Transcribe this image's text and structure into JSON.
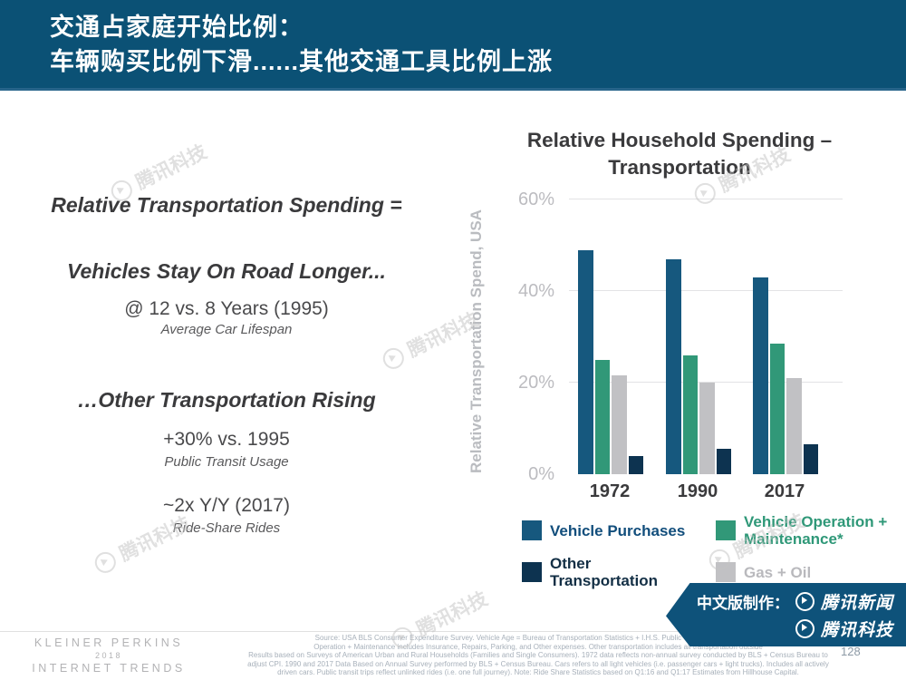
{
  "header": {
    "line1": "交通占家庭开始比例：",
    "line2": "车辆购买比例下滑......其他交通工具比例上涨"
  },
  "left_panel": {
    "heading1": "Relative Transportation Spending =",
    "heading2": "Vehicles Stay On Road Longer...",
    "stat1": {
      "value": "@ 12 vs. 8 Years (1995)",
      "caption": "Average Car Lifespan"
    },
    "heading3": "…Other Transportation Rising",
    "stat2": {
      "value": "+30% vs. 1995",
      "caption": "Public Transit Usage"
    },
    "stat3": {
      "value": "~2x Y/Y (2017)",
      "caption": "Ride-Share Rides"
    }
  },
  "chart": {
    "title_line1": "Relative Household Spending –",
    "title_line2": "Transportation",
    "ylabel": "Relative Transportation Spend, USA"
  },
  "chart_data": {
    "type": "bar",
    "title": "Relative Household Spending – Transportation",
    "xlabel": "",
    "ylabel": "Relative Transportation Spend, USA",
    "categories": [
      "1972",
      "1990",
      "2017"
    ],
    "series": [
      {
        "name": "Vehicle Purchases",
        "color": "#16587e",
        "values": [
          49,
          47,
          43
        ]
      },
      {
        "name": "Vehicle Operation + Maintenance*",
        "color": "#319878",
        "values": [
          25,
          26,
          28.5
        ]
      },
      {
        "name": "Gas + Oil",
        "color": "#c1c1c4",
        "values": [
          21.5,
          20,
          21
        ]
      },
      {
        "name": "Other Transportation",
        "color": "#0d3350",
        "values": [
          4,
          5.5,
          6.5
        ]
      }
    ],
    "ylim": [
      0,
      62
    ],
    "yticks": [
      {
        "value": 60,
        "label": "60%"
      },
      {
        "value": 40,
        "label": "40%"
      },
      {
        "value": 20,
        "label": "20%"
      },
      {
        "value": 0,
        "label": "0%"
      }
    ],
    "grid": true,
    "legend_position": "bottom"
  },
  "legend": {
    "items": [
      {
        "label_lines": [
          "Vehicle Purchases"
        ],
        "color": "#16587e",
        "text_color": "#124e7c"
      },
      {
        "label_lines": [
          "Vehicle Operation +",
          "Maintenance*"
        ],
        "color": "#319878",
        "text_color": "#2f9878"
      },
      {
        "label_lines": [
          "Other",
          "Transportation"
        ],
        "color": "#0d3350",
        "text_color": "#132f45"
      },
      {
        "label_lines": [
          "Gas + Oil"
        ],
        "color": "#c1c1c4",
        "text_color": "#b9b9bd"
      }
    ]
  },
  "banner": {
    "prefix": "中文版制作：",
    "brand1": "腾讯新闻",
    "brand2": "腾讯科技"
  },
  "watermark": {
    "text": "腾讯科技"
  },
  "footer": {
    "logo_line1": "KLEINER PERKINS",
    "logo_line2": "2018",
    "logo_line3": "INTERNET TRENDS",
    "source_lines": [
      "Source: USA BLS  Consumer Expenditure Survey. Vehicle Age = Bureau of Transportation Statistics + I.H.S. Public Transit Trips = American",
      "Operation + Maintenance includes Insurance, Repairs, Parking, and Other expenses. Other transportation includes all transportation outside",
      "Results based on Surveys of American Urban and Rural Households (Families and Single Consumers). 1972 data reflects non-annual survey conducted by BLS + Census Bureau to",
      "adjust CPI. 1990 and 2017 Data Based on Annual Survey performed by BLS + Census Bureau. Cars refers to all light vehicles (i.e. passenger cars + light trucks). Includes all actively",
      "driven cars.  Public transit trips reflect unlinked rides (i.e. one full journey).  Note: Ride Share Statistics based on Q1:16 and Q1:17 Estimates from Hillhouse Capital."
    ],
    "page_number": "128"
  },
  "colors": {
    "header_bg": "#0b5175",
    "banner_bg": "#0e527a",
    "text_dark": "#3a3a3c",
    "axis_gray": "#bcbcc0",
    "gridline": "#e3e3e5"
  }
}
